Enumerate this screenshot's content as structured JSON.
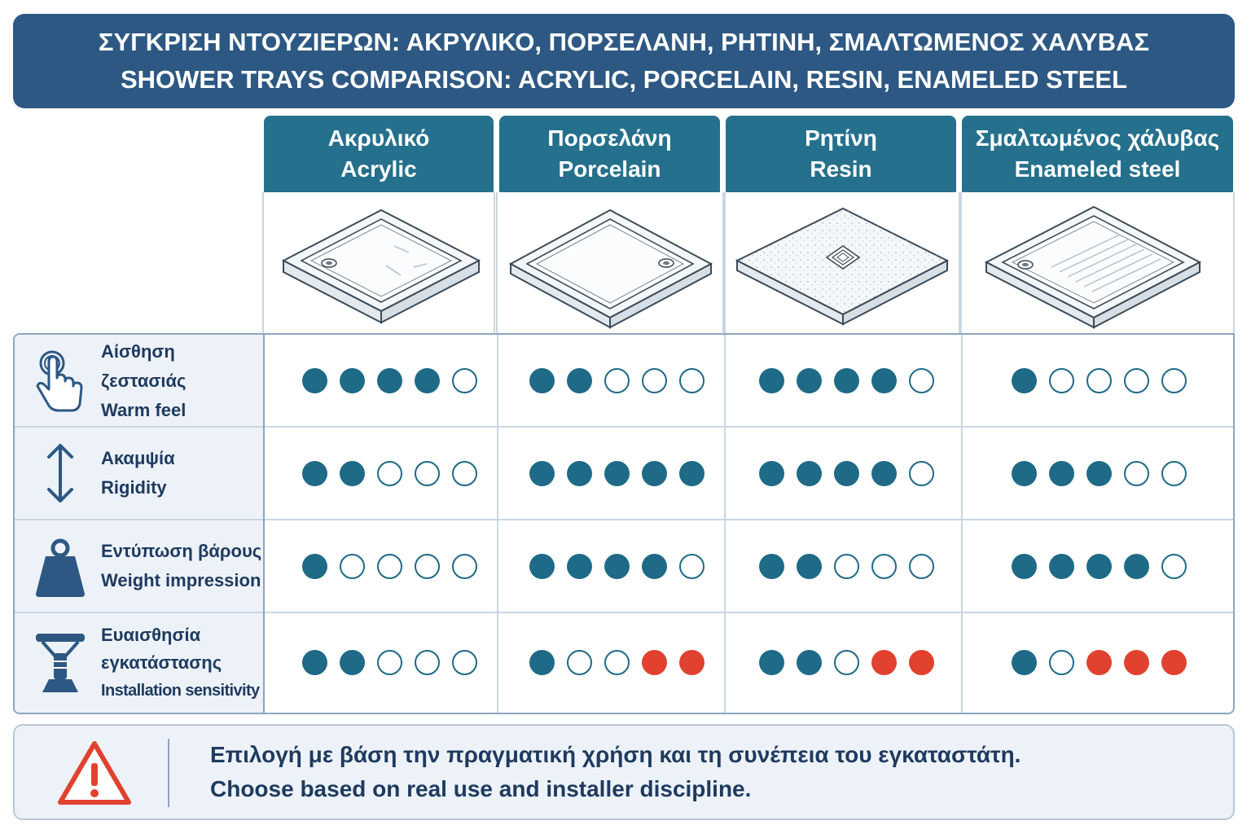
{
  "title": {
    "greek": "ΣΥΓΚΡΙΣΗ ΝΤΟΥΖΙΕΡΩΝ: ΑΚΡΥΛΙΚΟ, ΠΟΡΣΕΛΑΝΗ, ΡΗΤΙΝΗ, ΣΜΑΛΤΩΜΕΝΟΣ ΧΑΛΥΒΑΣ",
    "english": "SHOWER TRAYS COMPARISON: ACRYLIC, PORCELAIN, RESIN, ENAMELED STEEL"
  },
  "chart_data": {
    "type": "table",
    "scale_max": 5,
    "columns": [
      {
        "greek": "Ακρυλικό",
        "english": "Acrylic",
        "image": "acrylic-tray-illustration"
      },
      {
        "greek": "Πορσελάνη",
        "english": "Porcelain",
        "image": "porcelain-tray-illustration"
      },
      {
        "greek": "Ρητίνη",
        "english": "Resin",
        "image": "resin-tray-illustration"
      },
      {
        "greek": "Σμαλτωμένος χάλυβας",
        "english": "Enameled steel",
        "image": "enameled-steel-tray-illustration"
      }
    ],
    "rows": [
      {
        "greek": "Αίσθηση ζεστασιάς",
        "english": "Warm feel",
        "icon": "hand-touch-icon",
        "ratings": [
          {
            "filled": 4,
            "red": 0
          },
          {
            "filled": 2,
            "red": 0
          },
          {
            "filled": 4,
            "red": 0
          },
          {
            "filled": 1,
            "red": 0
          }
        ]
      },
      {
        "greek": "Ακαμψία",
        "english": "Rigidity",
        "icon": "vertical-arrows-icon",
        "ratings": [
          {
            "filled": 2,
            "red": 0
          },
          {
            "filled": 5,
            "red": 0
          },
          {
            "filled": 4,
            "red": 0
          },
          {
            "filled": 3,
            "red": 0
          }
        ]
      },
      {
        "greek": "Εντύπωση βάρους",
        "english": "Weight impression",
        "icon": "weight-icon",
        "ratings": [
          {
            "filled": 1,
            "red": 0
          },
          {
            "filled": 4,
            "red": 0
          },
          {
            "filled": 2,
            "red": 0
          },
          {
            "filled": 4,
            "red": 0
          }
        ]
      },
      {
        "greek": "Ευαισθησία εγκατάστασης",
        "greek_lines": [
          "Ευαισθησία",
          "εγκατάστασης"
        ],
        "english": "Installation sensitivity",
        "icon": "adjustable-foot-icon",
        "ratings": [
          {
            "filled": 2,
            "red": 0
          },
          {
            "filled": 1,
            "red": 2
          },
          {
            "filled": 2,
            "red": 2
          },
          {
            "filled": 1,
            "red": 3
          }
        ]
      }
    ]
  },
  "footer": {
    "icon": "warning-icon",
    "greek": "Επιλογή με βάση την πραγματική χρήση και τη συνέπεια του εγκαταστάτη.",
    "english": "Choose based on real use and installer discipline."
  },
  "colors": {
    "banner": "#2d5883",
    "column_header": "#25708c",
    "filled_dot": "#1e6a87",
    "red_dot": "#e1412f",
    "label_bg": "#edf2f8"
  }
}
